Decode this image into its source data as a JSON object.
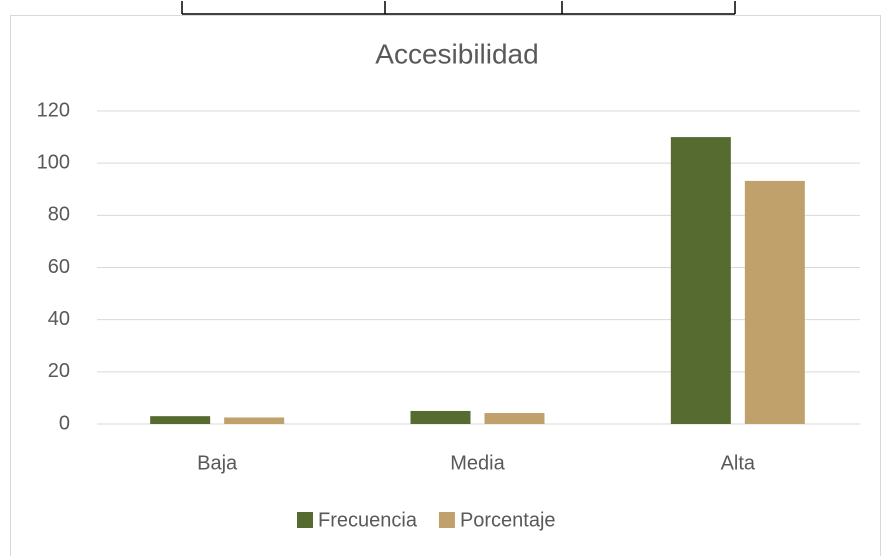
{
  "chart_data": {
    "type": "bar",
    "title": "Accesibilidad",
    "categories": [
      "Baja",
      "Media",
      "Alta"
    ],
    "series": [
      {
        "name": "Frecuencia",
        "color": "#556b2f",
        "values": [
          3,
          5,
          110
        ]
      },
      {
        "name": "Porcentaje",
        "color": "#c1a16b",
        "values": [
          2.5,
          4.2,
          93.2
        ]
      }
    ],
    "ylim": [
      0,
      120
    ],
    "yticks": [
      0,
      20,
      40,
      60,
      80,
      100,
      120
    ],
    "grid": true,
    "legend": "bottom"
  }
}
